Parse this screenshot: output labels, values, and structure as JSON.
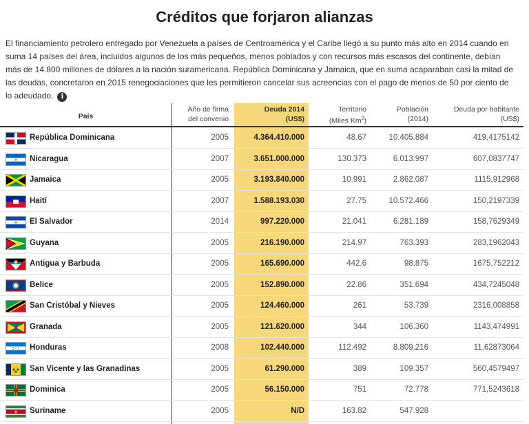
{
  "title": "Créditos que forjaron alianzas",
  "intro": "El financiamiento petrolero entregado por Venezuela a países de Centroamérica y el Caribe llegó a su punto más alto en 2014 cuando en suma 14 países del área, incluidos algunos de los más pequeños, menos poblados y con recursos más escasos del continente, debían más de 14.800 millones de dólares a la nación suramericana. República Dominicana y Jamaica, que en suma acaparaban casi la mitad de las deudas, concretaron en 2015 renegociaciones que les permitieron cancelar sus acreencias con el pago de menos de 50 por ciento de lo adeudado.",
  "info_icon": "info-icon",
  "highlight_color": "#f6d77a",
  "columns": {
    "country": "País",
    "year_1": "Año de firma",
    "year_2": "del convenio",
    "debt_1": "Deuda 2014",
    "debt_2": "(US$)",
    "terr_1": "Territorio",
    "terr_2": "(Miles Km",
    "terr_sup": "2",
    "terr_3": ")",
    "pop_1": "Población",
    "pop_2": "(2014)",
    "perh_1": "Deuda por habitante",
    "perh_2": "(US$)"
  },
  "rows": [
    {
      "country": "República Dominicana",
      "flag": "flag-dominican-republic-icon",
      "year": "2005",
      "debt": "4.364.410.000",
      "terr": "48.67",
      "pop": "10.405.884",
      "perh": "419,4175142"
    },
    {
      "country": "Nicaragua",
      "flag": "flag-nicaragua-icon",
      "year": "2007",
      "debt": "3.651.000.000",
      "terr": "130.373",
      "pop": "6.013.997",
      "perh": "607,0837747"
    },
    {
      "country": "Jamaica",
      "flag": "flag-jamaica-icon",
      "year": "2005",
      "debt": "3.193.840.000",
      "terr": "10.991",
      "pop": "2.862.087",
      "perh": "1115,912968"
    },
    {
      "country": "Haití",
      "flag": "flag-haiti-icon",
      "year": "2007",
      "debt": "1.588.193.030",
      "terr": "27.75",
      "pop": "10.572.466",
      "perh": "150,2197339"
    },
    {
      "country": "El Salvador",
      "flag": "flag-el-salvador-icon",
      "year": "2014",
      "debt": "997.220.000",
      "terr": "21.041",
      "pop": "6.281.189",
      "perh": "158,7629349"
    },
    {
      "country": "Guyana",
      "flag": "flag-guyana-icon",
      "year": "2005",
      "debt": "216.190.000",
      "terr": "214.97",
      "pop": "763.393",
      "perh": "283,1962043"
    },
    {
      "country": "Antigua y Barbuda",
      "flag": "flag-antigua-barbuda-icon",
      "year": "2005",
      "debt": "165.690.000",
      "terr": "442.6",
      "pop": "98.875",
      "perh": "1675,752212"
    },
    {
      "country": "Belice",
      "flag": "flag-belize-icon",
      "year": "2005",
      "debt": "152.890.000",
      "terr": "22.86",
      "pop": "351.694",
      "perh": "434,7245048"
    },
    {
      "country": "San Cristóbal y Nieves",
      "flag": "flag-saint-kitts-nevis-icon",
      "year": "2005",
      "debt": "124.460.000",
      "terr": "261",
      "pop": "53.739",
      "perh": "2316,008858"
    },
    {
      "country": "Granada",
      "flag": "flag-grenada-icon",
      "year": "2005",
      "debt": "121.620.000",
      "terr": "344",
      "pop": "106.360",
      "perh": "1143,474991"
    },
    {
      "country": "Honduras",
      "flag": "flag-honduras-icon",
      "year": "2008",
      "debt": "102.440.000",
      "terr": "112.492",
      "pop": "8.809.216",
      "perh": "11,62873064"
    },
    {
      "country": "San Vicente y las Granadinas",
      "flag": "flag-saint-vincent-icon",
      "year": "2005",
      "debt": "61.290.000",
      "terr": "389",
      "pop": "109.357",
      "perh": "560,4579497"
    },
    {
      "country": "Dominica",
      "flag": "flag-dominica-icon",
      "year": "2005",
      "debt": "56.150.000",
      "terr": "751",
      "pop": "72.778",
      "perh": "771,5243618"
    },
    {
      "country": "Suriname",
      "flag": "flag-suriname-icon",
      "year": "2005",
      "debt": "N/D",
      "terr": "163.82",
      "pop": "547.928",
      "perh": ""
    }
  ]
}
